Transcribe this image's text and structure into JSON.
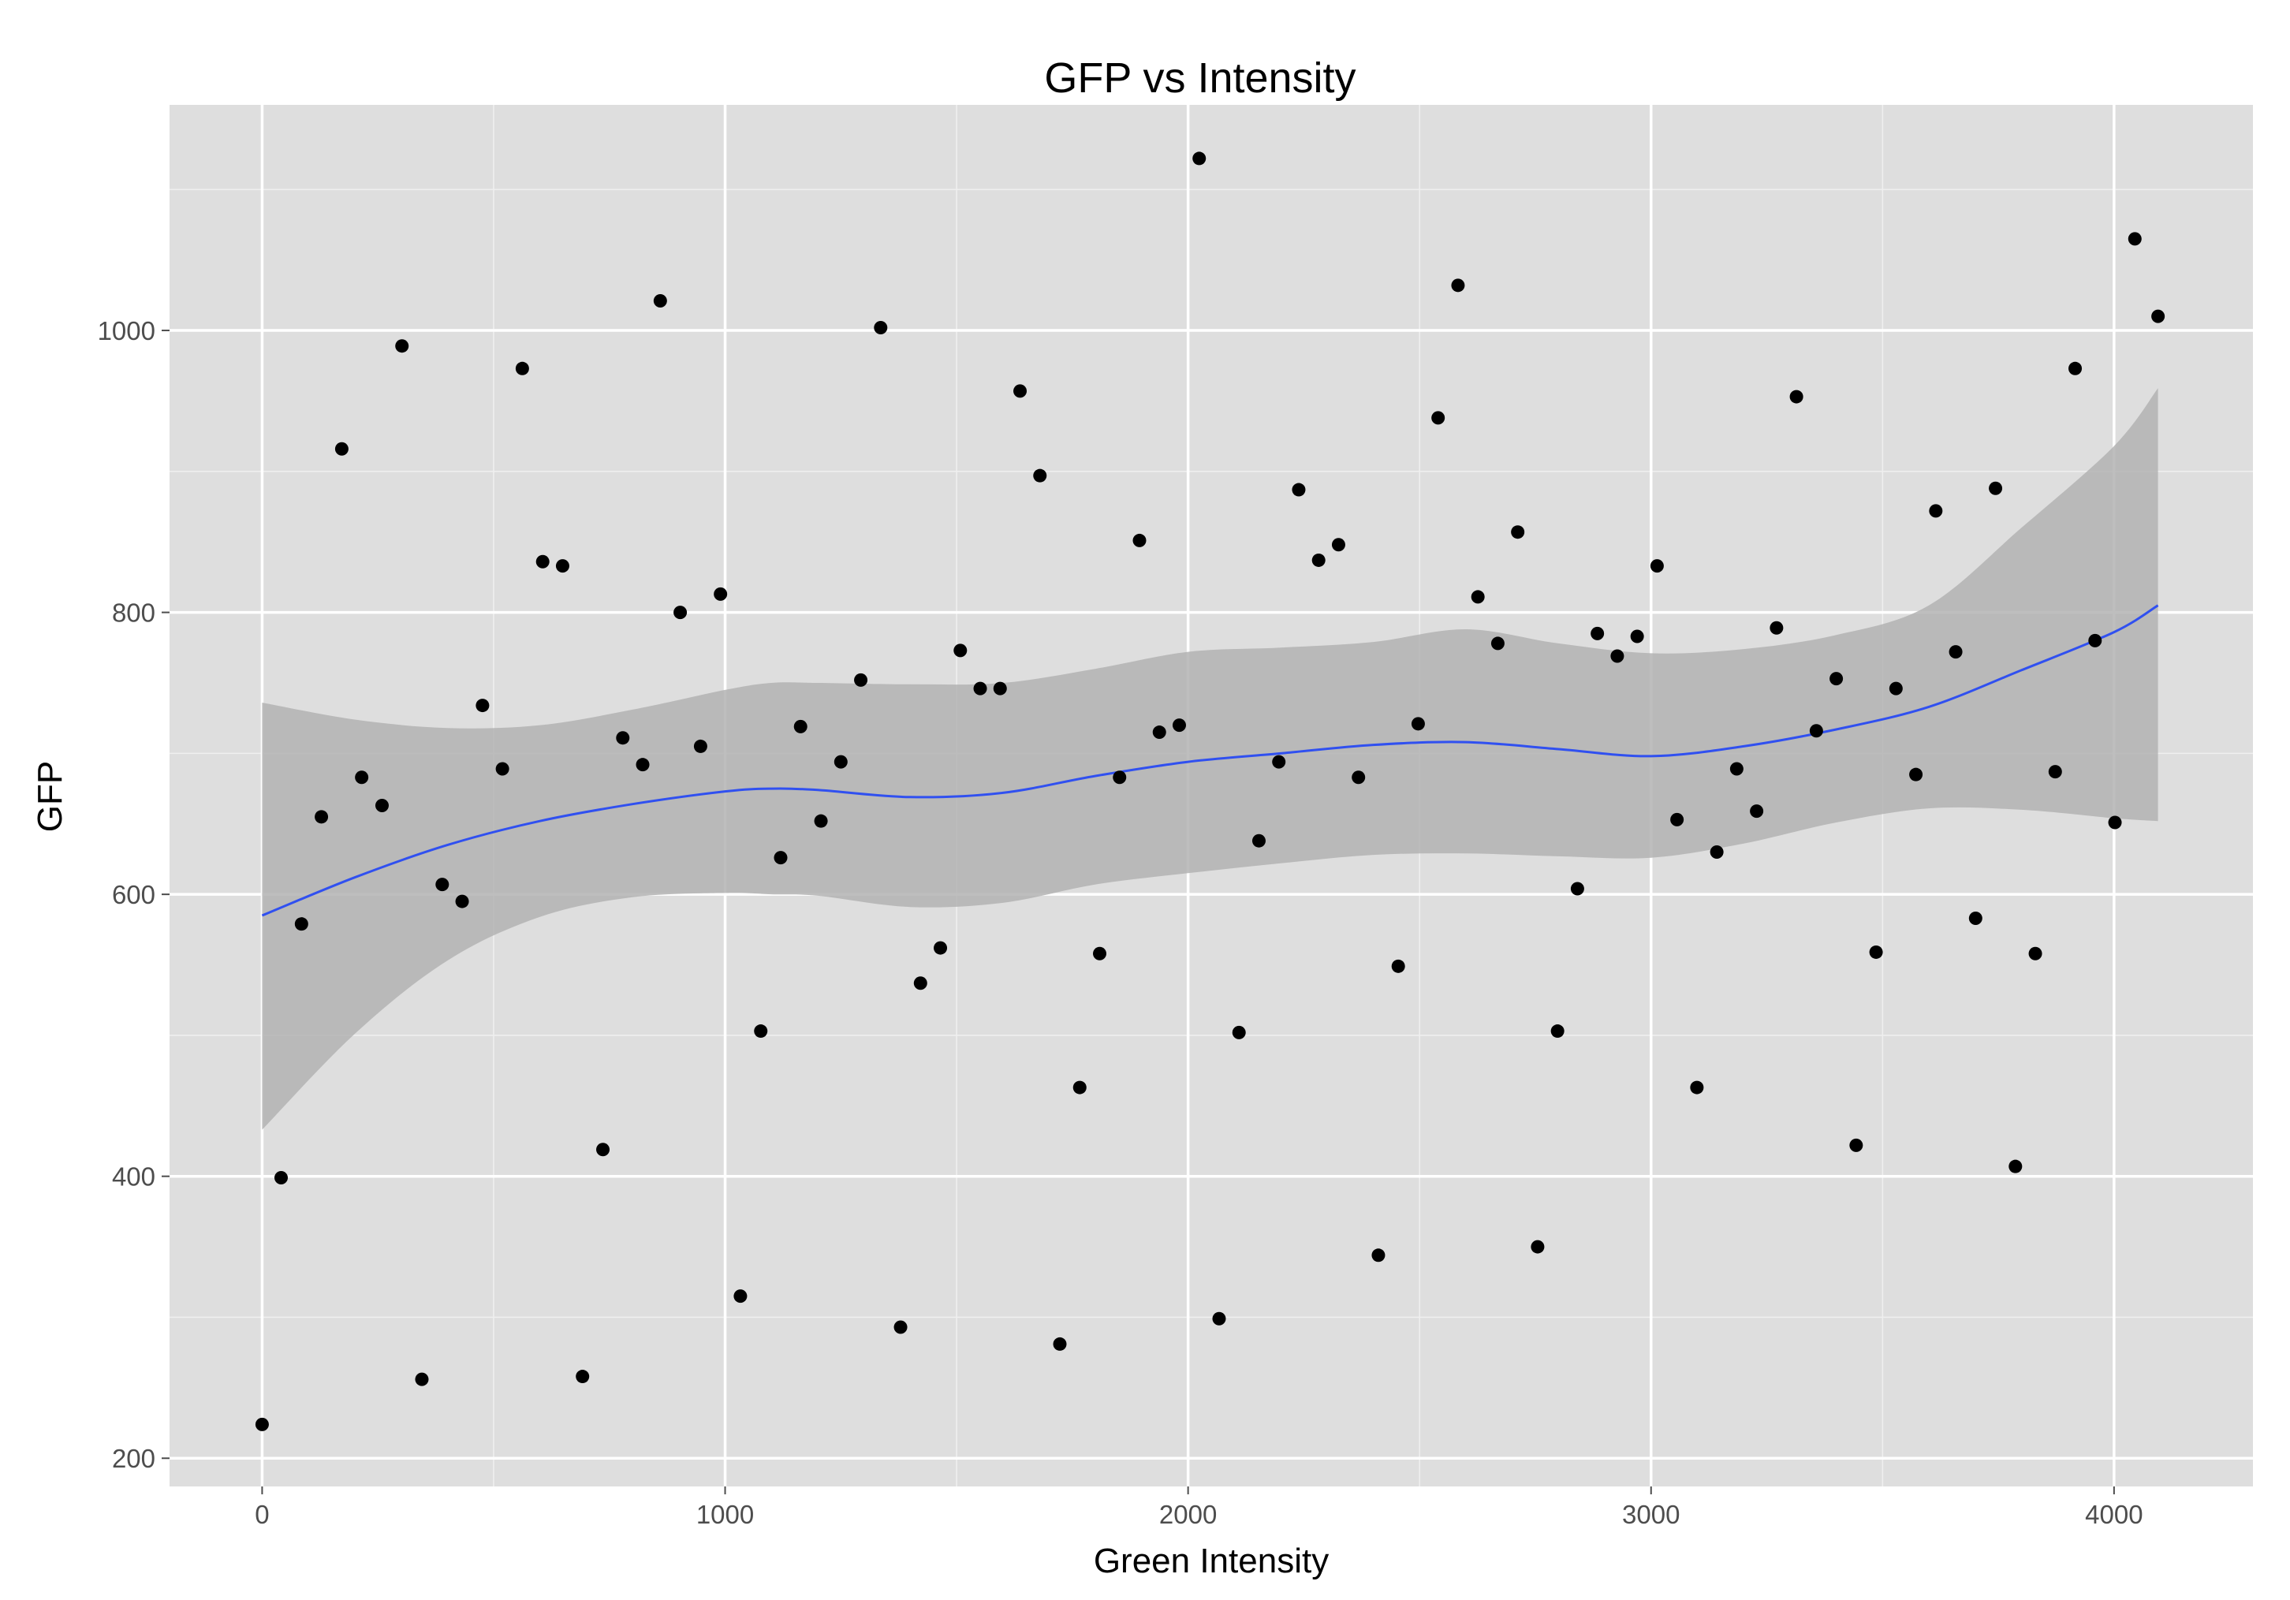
{
  "chart_data": {
    "type": "scatter",
    "title": "GFP vs Intensity",
    "xlabel": "Green Intensity",
    "ylabel": "GFP",
    "xlim": [
      -200,
      4300
    ],
    "ylim": [
      180,
      1160
    ],
    "x_ticks": [
      0,
      1000,
      2000,
      3000,
      4000
    ],
    "x_tick_labels": [
      "0",
      "1000",
      "2000",
      "3000",
      "4000"
    ],
    "y_ticks": [
      200,
      400,
      600,
      800,
      1000
    ],
    "y_tick_labels": [
      "200",
      "400",
      "600",
      "800",
      "1000"
    ],
    "x_minor_ticks": [
      500,
      1500,
      2500,
      3500
    ],
    "y_minor_ticks": [
      300,
      500,
      700,
      900,
      1100
    ],
    "grid": true,
    "colors": {
      "panel_background": "#dedede",
      "grid_major": "#ffffff",
      "points": "#000000",
      "smooth_line": "#3050f0",
      "confidence_band": "#b3b3b3"
    },
    "points": [
      {
        "x": 0,
        "y": 224
      },
      {
        "x": 41,
        "y": 399
      },
      {
        "x": 85,
        "y": 579
      },
      {
        "x": 128,
        "y": 655
      },
      {
        "x": 172,
        "y": 916
      },
      {
        "x": 215,
        "y": 683
      },
      {
        "x": 259,
        "y": 663
      },
      {
        "x": 302,
        "y": 989
      },
      {
        "x": 345,
        "y": 256
      },
      {
        "x": 389,
        "y": 607
      },
      {
        "x": 432,
        "y": 595
      },
      {
        "x": 476,
        "y": 734
      },
      {
        "x": 519,
        "y": 689
      },
      {
        "x": 562,
        "y": 973
      },
      {
        "x": 606,
        "y": 836
      },
      {
        "x": 649,
        "y": 833
      },
      {
        "x": 692,
        "y": 258
      },
      {
        "x": 736,
        "y": 419
      },
      {
        "x": 779,
        "y": 711
      },
      {
        "x": 822,
        "y": 692
      },
      {
        "x": 860,
        "y": 1021
      },
      {
        "x": 903,
        "y": 800
      },
      {
        "x": 947,
        "y": 705
      },
      {
        "x": 990,
        "y": 813
      },
      {
        "x": 1033,
        "y": 315
      },
      {
        "x": 1077,
        "y": 503
      },
      {
        "x": 1120,
        "y": 626
      },
      {
        "x": 1163,
        "y": 719
      },
      {
        "x": 1207,
        "y": 652
      },
      {
        "x": 1250,
        "y": 694
      },
      {
        "x": 1293,
        "y": 752
      },
      {
        "x": 1336,
        "y": 1002
      },
      {
        "x": 1379,
        "y": 293
      },
      {
        "x": 1422,
        "y": 537
      },
      {
        "x": 1465,
        "y": 562
      },
      {
        "x": 1508,
        "y": 773
      },
      {
        "x": 1551,
        "y": 746
      },
      {
        "x": 1594,
        "y": 746
      },
      {
        "x": 1637,
        "y": 957
      },
      {
        "x": 1680,
        "y": 897
      },
      {
        "x": 1723,
        "y": 281
      },
      {
        "x": 1766,
        "y": 463
      },
      {
        "x": 1809,
        "y": 558
      },
      {
        "x": 1852,
        "y": 683
      },
      {
        "x": 1895,
        "y": 851
      },
      {
        "x": 1938,
        "y": 715
      },
      {
        "x": 1981,
        "y": 720
      },
      {
        "x": 2024,
        "y": 1122
      },
      {
        "x": 2067,
        "y": 299
      },
      {
        "x": 2110,
        "y": 502
      },
      {
        "x": 2153,
        "y": 638
      },
      {
        "x": 2196,
        "y": 694
      },
      {
        "x": 2239,
        "y": 887
      },
      {
        "x": 2282,
        "y": 837
      },
      {
        "x": 2325,
        "y": 848
      },
      {
        "x": 2368,
        "y": 683
      },
      {
        "x": 2411,
        "y": 344
      },
      {
        "x": 2454,
        "y": 549
      },
      {
        "x": 2497,
        "y": 721
      },
      {
        "x": 2540,
        "y": 938
      },
      {
        "x": 2583,
        "y": 1032
      },
      {
        "x": 2626,
        "y": 811
      },
      {
        "x": 2669,
        "y": 778
      },
      {
        "x": 2712,
        "y": 857
      },
      {
        "x": 2755,
        "y": 350
      },
      {
        "x": 2798,
        "y": 503
      },
      {
        "x": 2841,
        "y": 604
      },
      {
        "x": 2884,
        "y": 785
      },
      {
        "x": 2927,
        "y": 769
      },
      {
        "x": 2970,
        "y": 783
      },
      {
        "x": 3013,
        "y": 833
      },
      {
        "x": 3056,
        "y": 653
      },
      {
        "x": 3099,
        "y": 463
      },
      {
        "x": 3142,
        "y": 630
      },
      {
        "x": 3185,
        "y": 689
      },
      {
        "x": 3228,
        "y": 659
      },
      {
        "x": 3271,
        "y": 789
      },
      {
        "x": 3314,
        "y": 953
      },
      {
        "x": 3357,
        "y": 716
      },
      {
        "x": 3400,
        "y": 753
      },
      {
        "x": 3443,
        "y": 422
      },
      {
        "x": 3486,
        "y": 559
      },
      {
        "x": 3529,
        "y": 746
      },
      {
        "x": 3572,
        "y": 685
      },
      {
        "x": 3615,
        "y": 872
      },
      {
        "x": 3658,
        "y": 772
      },
      {
        "x": 3701,
        "y": 583
      },
      {
        "x": 3744,
        "y": 888
      },
      {
        "x": 3787,
        "y": 407
      },
      {
        "x": 3830,
        "y": 558
      },
      {
        "x": 3873,
        "y": 687
      },
      {
        "x": 3916,
        "y": 973
      },
      {
        "x": 3959,
        "y": 780
      },
      {
        "x": 4002,
        "y": 651
      },
      {
        "x": 4045,
        "y": 1065
      },
      {
        "x": 4095,
        "y": 1010
      }
    ],
    "smooth": {
      "x": [
        0,
        200,
        400,
        600,
        800,
        1000,
        1100,
        1200,
        1400,
        1600,
        1800,
        2000,
        2200,
        2400,
        2600,
        2800,
        3000,
        3200,
        3400,
        3600,
        3800,
        4000,
        4095
      ],
      "y": [
        585,
        612,
        635,
        652,
        664,
        673,
        675,
        674,
        669,
        672,
        684,
        694,
        700,
        706,
        708,
        703,
        698,
        705,
        717,
        733,
        759,
        786,
        805
      ],
      "upper": [
        736,
        724,
        718,
        720,
        731,
        745,
        750,
        750,
        749,
        750,
        760,
        772,
        775,
        779,
        788,
        778,
        771,
        774,
        784,
        805,
        860,
        918,
        959
      ],
      "lower": [
        433,
        501,
        553,
        584,
        598,
        601,
        600,
        599,
        591,
        594,
        607,
        615,
        622,
        628,
        629,
        627,
        626,
        636,
        651,
        661,
        660,
        654,
        652
      ]
    }
  }
}
